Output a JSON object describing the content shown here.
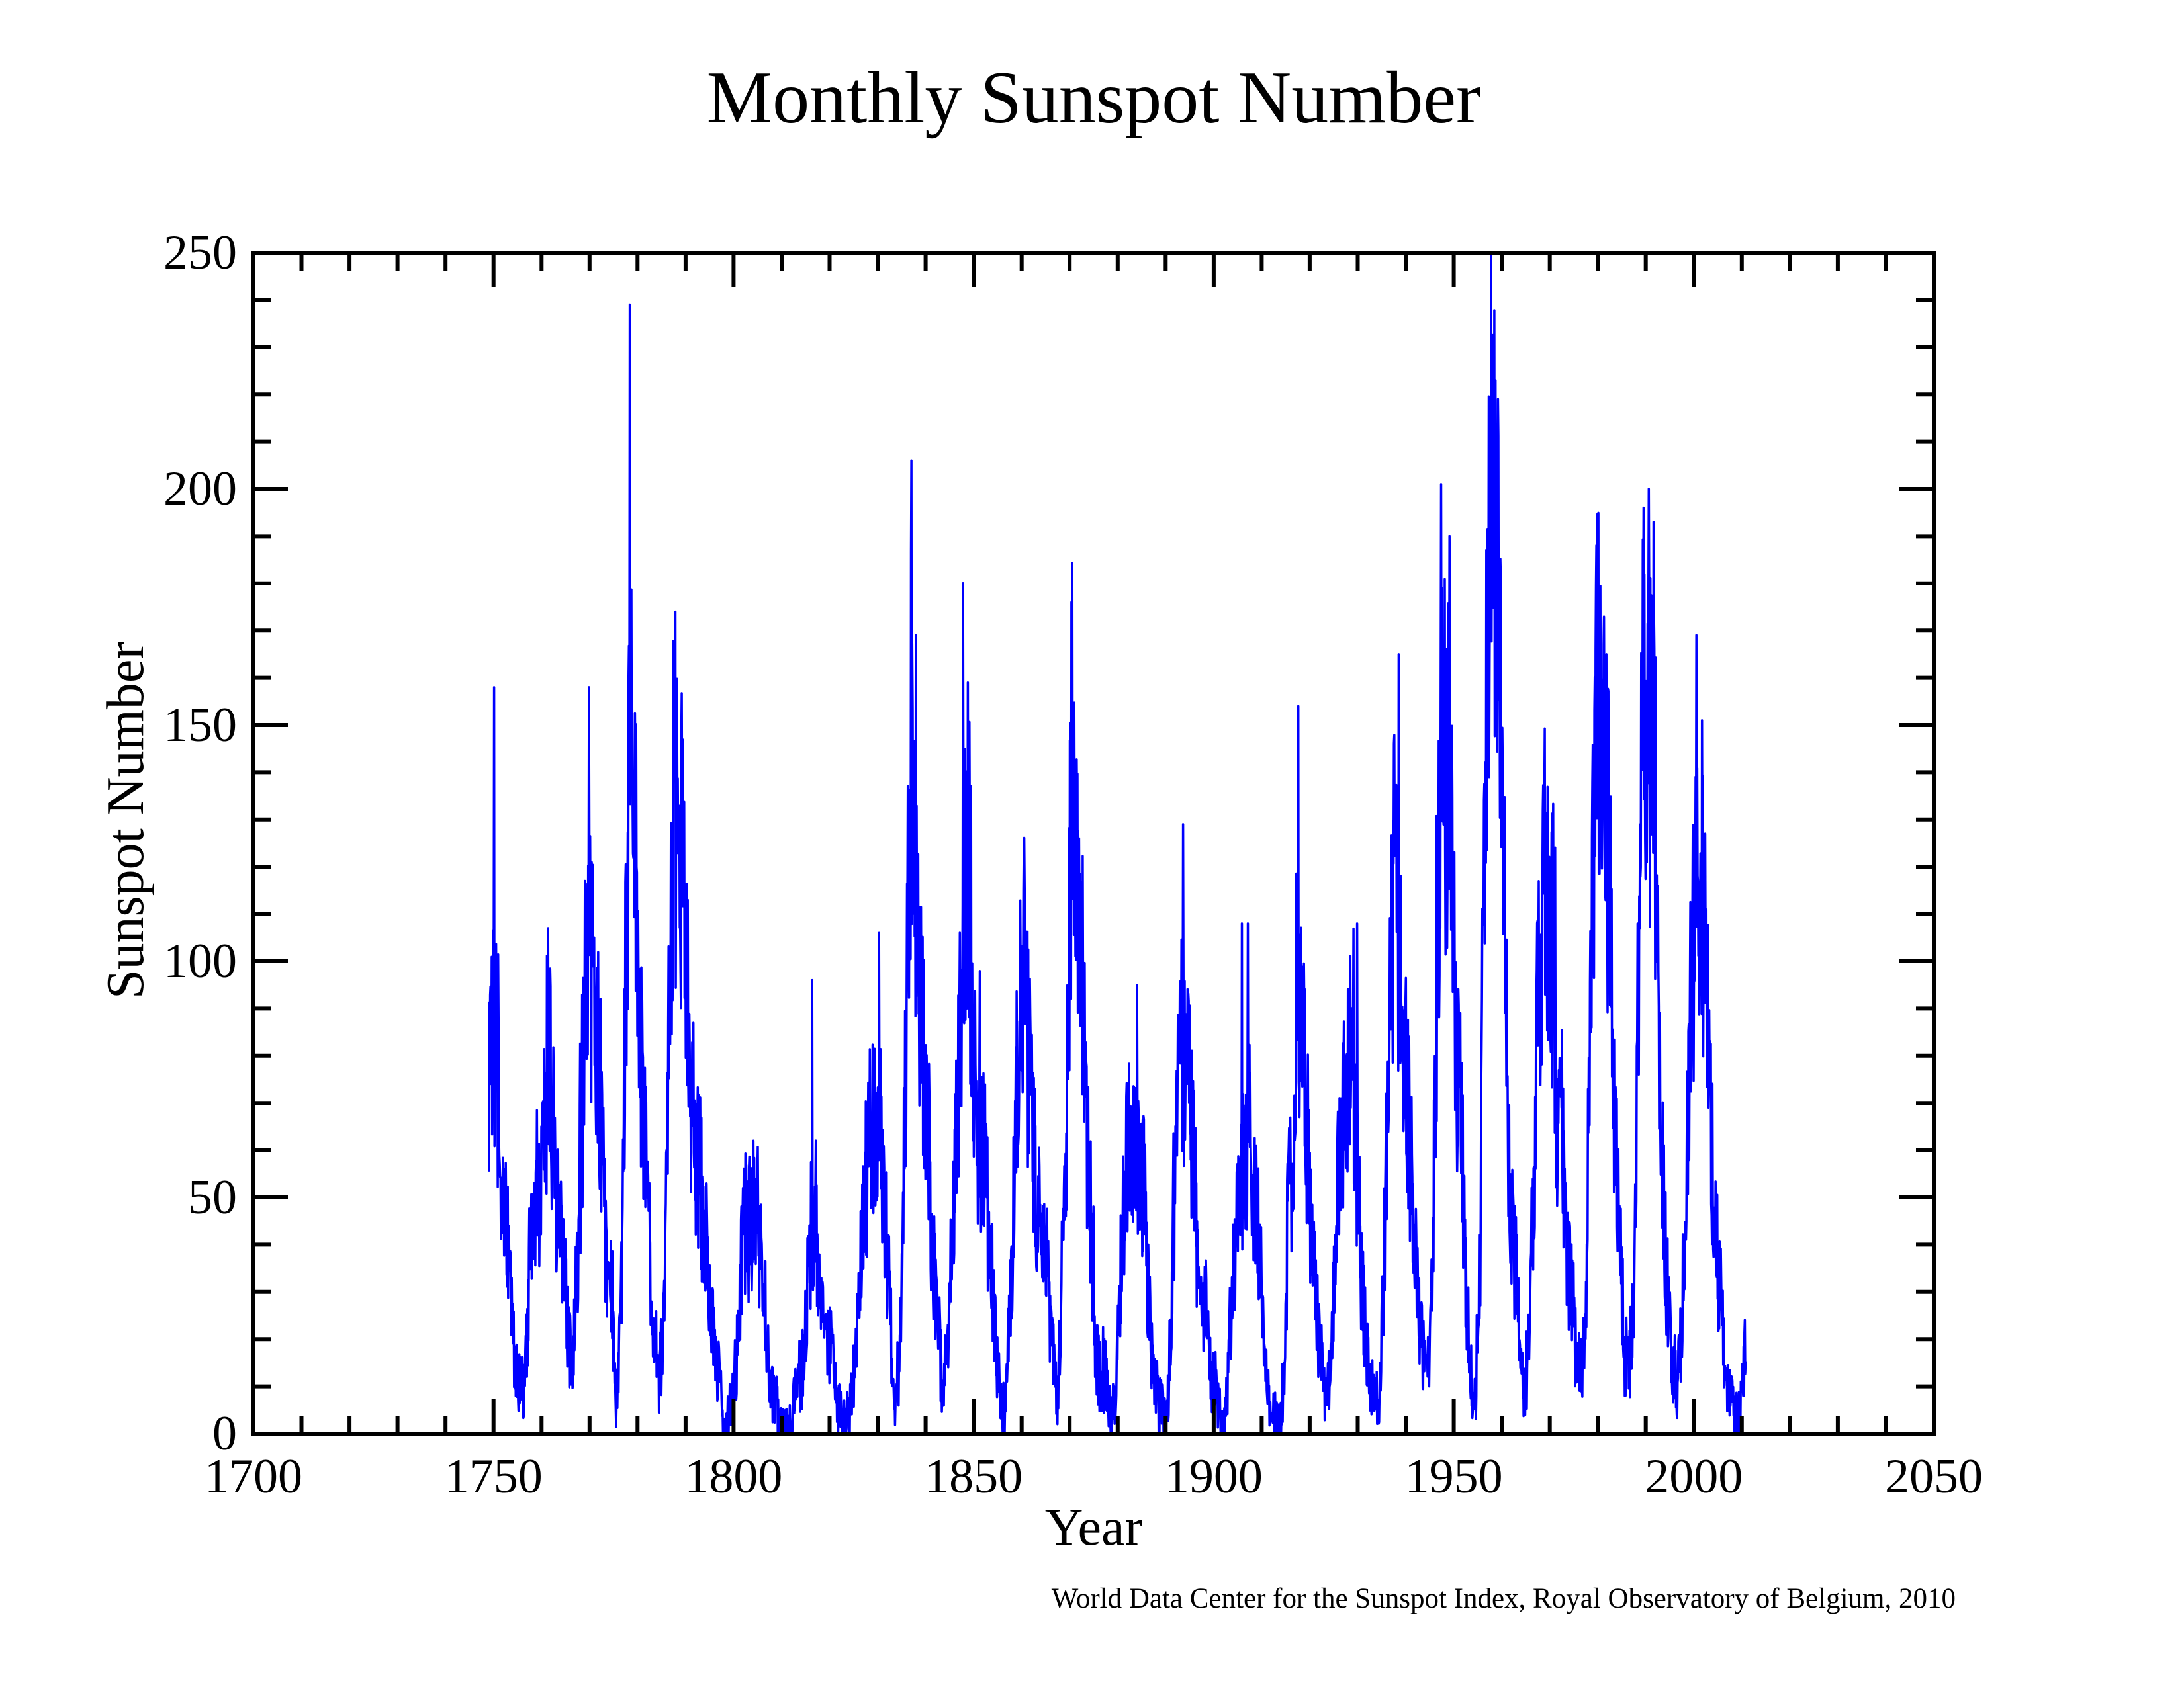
{
  "title": "Monthly Sunspot Number",
  "attribution": "World Data Center for the Sunspot Index, Royal Observatory of Belgium, 2010",
  "colors": {
    "background": "#ffffff",
    "axis": "#000000",
    "text": "#000000",
    "series_line": "#0000ff"
  },
  "chart_data": {
    "type": "line",
    "title": "Monthly Sunspot Number",
    "xlabel": "Year",
    "ylabel": "Sunspot Number",
    "xlim": [
      1700,
      2050
    ],
    "ylim": [
      0,
      250
    ],
    "x_major_tick_step": 50,
    "x_minor_tick_step": 10,
    "y_major_tick_step": 50,
    "y_minor_tick_step": 10,
    "x_tick_labels": [
      "1700",
      "1750",
      "1800",
      "1850",
      "1900",
      "1950",
      "2000",
      "2050"
    ],
    "y_tick_labels": [
      "0",
      "50",
      "100",
      "150",
      "200",
      "250"
    ],
    "grid": false,
    "legend": null,
    "frame_box": true,
    "ticks_inward_all_sides": true,
    "line_color": "#0000ff",
    "series_name": "monthly sunspot number",
    "resolution_note": "monthly series (1749-2010); values below are yearly means read from the plot, with notable monthly peak spikes listed separately",
    "data_start_year": 1749.0,
    "data_end_year": 2010.8,
    "yearly_means": {
      "start_year": 1749,
      "values": [
        80.9,
        83.4,
        47.7,
        47.8,
        30.7,
        12.2,
        9.6,
        10.2,
        32.4,
        47.6,
        54.0,
        62.9,
        85.9,
        61.2,
        45.1,
        36.4,
        20.9,
        11.4,
        37.8,
        69.8,
        106.1,
        100.8,
        81.6,
        66.5,
        34.8,
        30.6,
        7.0,
        19.8,
        92.5,
        154.4,
        125.9,
        84.8,
        68.1,
        38.5,
        22.8,
        10.2,
        24.1,
        82.9,
        132.0,
        130.9,
        118.1,
        89.9,
        66.6,
        60.0,
        46.9,
        41.0,
        21.3,
        16.0,
        6.4,
        4.1,
        6.8,
        14.5,
        34.0,
        45.0,
        43.1,
        47.5,
        42.2,
        28.1,
        10.1,
        8.1,
        2.5,
        0.0,
        1.4,
        5.0,
        12.2,
        13.9,
        35.4,
        45.8,
        41.1,
        30.1,
        23.9,
        15.6,
        6.6,
        4.0,
        1.8,
        8.5,
        16.6,
        36.3,
        49.6,
        64.2,
        67.0,
        70.9,
        47.8,
        27.5,
        8.5,
        13.2,
        56.9,
        121.5,
        138.3,
        103.2,
        85.7,
        64.6,
        36.7,
        24.2,
        10.7,
        15.0,
        40.1,
        61.5,
        98.5,
        124.7,
        96.3,
        66.6,
        64.5,
        54.1,
        39.0,
        20.6,
        6.7,
        4.3,
        22.7,
        54.8,
        93.8,
        95.8,
        77.2,
        59.1,
        44.0,
        47.0,
        30.5,
        16.3,
        7.3,
        37.6,
        74.0,
        139.0,
        111.2,
        101.6,
        66.2,
        44.7,
        17.0,
        11.3,
        12.4,
        3.4,
        6.0,
        32.3,
        54.3,
        59.7,
        63.7,
        63.5,
        52.2,
        25.4,
        13.1,
        6.8,
        6.3,
        7.1,
        35.6,
        73.0,
        85.1,
        78.0,
        64.0,
        41.8,
        26.2,
        26.7,
        12.1,
        9.5,
        2.7,
        5.0,
        24.4,
        42.0,
        63.5,
        53.8,
        62.0,
        48.5,
        43.9,
        18.6,
        5.7,
        3.6,
        1.4,
        9.6,
        47.4,
        57.1,
        103.9,
        80.6,
        63.6,
        37.6,
        26.1,
        14.2,
        5.8,
        16.7,
        44.3,
        63.9,
        69.0,
        77.8,
        64.9,
        35.7,
        21.2,
        11.1,
        5.7,
        8.7,
        36.1,
        79.7,
        114.4,
        109.6,
        88.8,
        67.8,
        47.5,
        30.6,
        16.3,
        9.6,
        33.2,
        92.6,
        151.6,
        136.3,
        134.7,
        83.9,
        69.4,
        31.5,
        13.9,
        4.4,
        38.0,
        141.7,
        190.2,
        184.8,
        159.0,
        112.3,
        53.9,
        37.6,
        27.9,
        10.2,
        15.1,
        47.0,
        93.8,
        105.9,
        105.5,
        104.5,
        66.6,
        68.9,
        38.0,
        34.5,
        15.5,
        12.6,
        27.5,
        92.5,
        155.4,
        154.6,
        140.4,
        115.9,
        66.6,
        45.9,
        17.9,
        13.4,
        29.4,
        100.2,
        157.6,
        142.6,
        145.7,
        94.3,
        54.6,
        29.9,
        17.5,
        8.6,
        21.5,
        64.3,
        93.3,
        119.6,
        111.0,
        104.0,
        63.7,
        40.4,
        29.8,
        15.2,
        7.5,
        2.9,
        3.1,
        16.5
      ]
    },
    "monthly_peaks": [
      {
        "year": 1750.1,
        "value": 158
      },
      {
        "year": 1761.4,
        "value": 107
      },
      {
        "year": 1769.9,
        "value": 158
      },
      {
        "year": 1778.4,
        "value": 239
      },
      {
        "year": 1787.9,
        "value": 174
      },
      {
        "year": 1804.1,
        "value": 62
      },
      {
        "year": 1816.4,
        "value": 96
      },
      {
        "year": 1830.3,
        "value": 106
      },
      {
        "year": 1837.0,
        "value": 206
      },
      {
        "year": 1847.8,
        "value": 180
      },
      {
        "year": 1848.8,
        "value": 159
      },
      {
        "year": 1860.6,
        "value": 116
      },
      {
        "year": 1870.4,
        "value": 176
      },
      {
        "year": 1884.0,
        "value": 95
      },
      {
        "year": 1893.6,
        "value": 129
      },
      {
        "year": 1905.9,
        "value": 108
      },
      {
        "year": 1907.1,
        "value": 108
      },
      {
        "year": 1917.6,
        "value": 154
      },
      {
        "year": 1929.9,
        "value": 108
      },
      {
        "year": 1938.5,
        "value": 165
      },
      {
        "year": 1947.4,
        "value": 201
      },
      {
        "year": 1949.1,
        "value": 190
      },
      {
        "year": 1957.8,
        "value": 254
      },
      {
        "year": 1959.2,
        "value": 219
      },
      {
        "year": 1968.9,
        "value": 136
      },
      {
        "year": 1979.7,
        "value": 188
      },
      {
        "year": 1981.8,
        "value": 165
      },
      {
        "year": 1989.5,
        "value": 196
      },
      {
        "year": 1990.6,
        "value": 200
      },
      {
        "year": 1991.6,
        "value": 193
      },
      {
        "year": 2000.5,
        "value": 169
      },
      {
        "year": 2001.7,
        "value": 151
      }
    ],
    "noise_seed": 7,
    "noise_base": 5,
    "noise_factor": 0.26,
    "spike_chance": 0.92,
    "spike_factor": 0.3
  }
}
